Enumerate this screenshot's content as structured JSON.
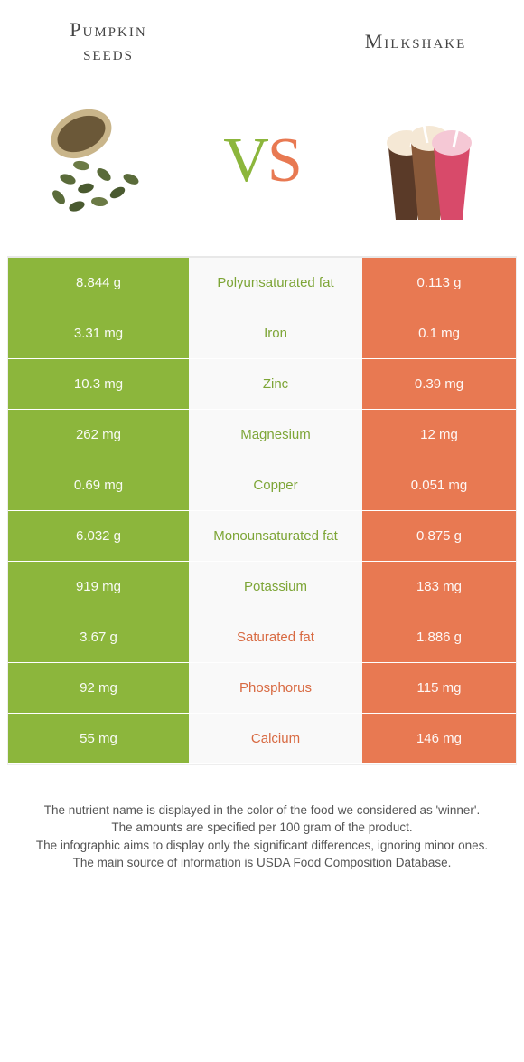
{
  "colors": {
    "green": "#8cb63c",
    "orange": "#e87952",
    "green_text": "#7da536",
    "orange_text": "#d86a42",
    "row_border": "#ffffff",
    "mid_bg": "#f9f9f9"
  },
  "header": {
    "left_title_line1": "Pumpkin",
    "left_title_line2": "seeds",
    "right_title": "Milkshake",
    "vs_v": "V",
    "vs_s": "S"
  },
  "nutrients": [
    {
      "name": "Polyunsaturated fat",
      "left": "8.844 g",
      "right": "0.113 g",
      "winner": "left"
    },
    {
      "name": "Iron",
      "left": "3.31 mg",
      "right": "0.1 mg",
      "winner": "left"
    },
    {
      "name": "Zinc",
      "left": "10.3 mg",
      "right": "0.39 mg",
      "winner": "left"
    },
    {
      "name": "Magnesium",
      "left": "262 mg",
      "right": "12 mg",
      "winner": "left"
    },
    {
      "name": "Copper",
      "left": "0.69 mg",
      "right": "0.051 mg",
      "winner": "left"
    },
    {
      "name": "Monounsaturated fat",
      "left": "6.032 g",
      "right": "0.875 g",
      "winner": "left"
    },
    {
      "name": "Potassium",
      "left": "919 mg",
      "right": "183 mg",
      "winner": "left"
    },
    {
      "name": "Saturated fat",
      "left": "3.67 g",
      "right": "1.886 g",
      "winner": "right"
    },
    {
      "name": "Phosphorus",
      "left": "92 mg",
      "right": "115 mg",
      "winner": "right"
    },
    {
      "name": "Calcium",
      "left": "55 mg",
      "right": "146 mg",
      "winner": "right"
    }
  ],
  "footnotes": [
    "The nutrient name is displayed in the color of the food we considered as 'winner'.",
    "The amounts are specified per 100 gram of the product.",
    "The infographic aims to display only the significant differences, ignoring minor ones.",
    "The main source of information is USDA Food Composition Database."
  ]
}
